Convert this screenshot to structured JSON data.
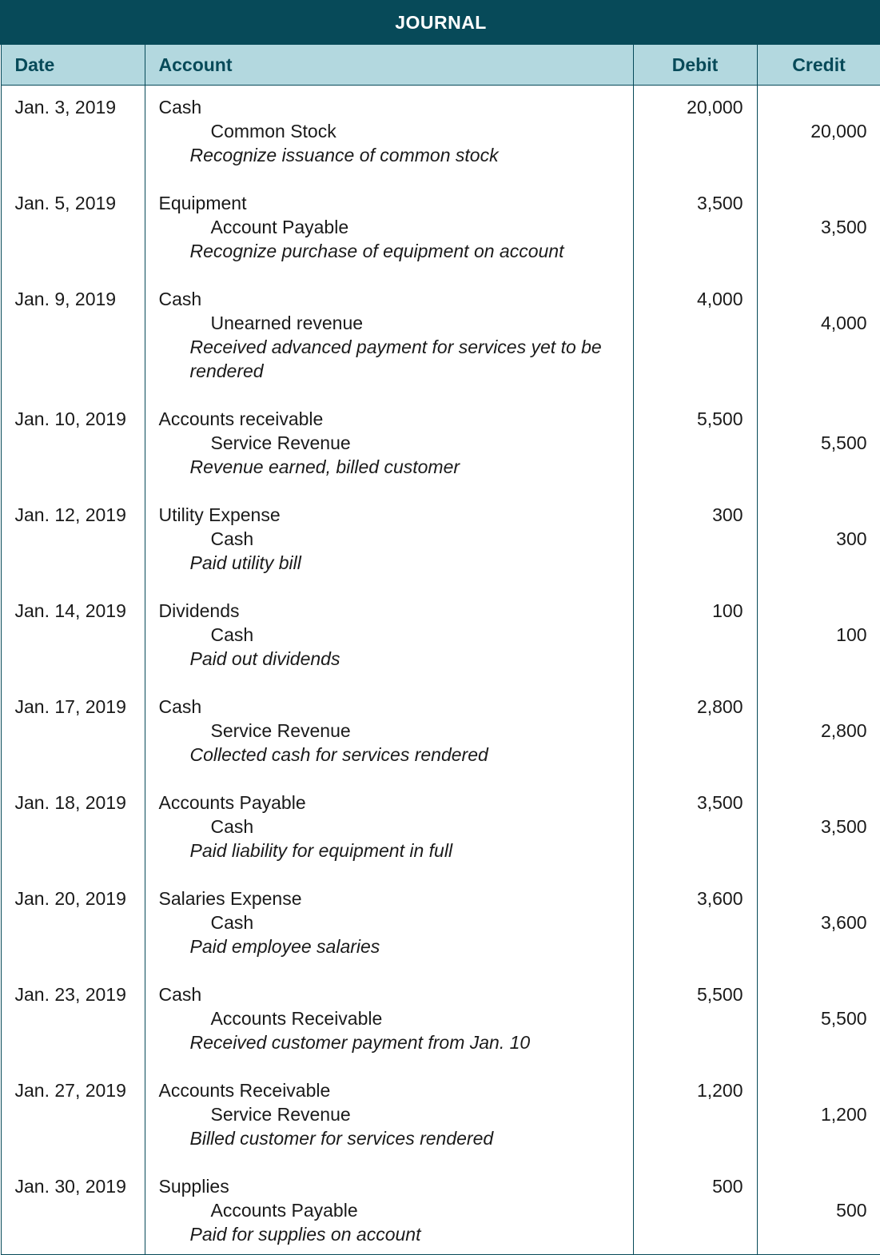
{
  "title": "JOURNAL",
  "headers": {
    "date": "Date",
    "account": "Account",
    "debit": "Debit",
    "credit": "Credit"
  },
  "colors": {
    "title_bg": "#074a59",
    "header_bg": "#b3d8df",
    "header_text": "#074a59"
  },
  "entries": [
    {
      "date": "Jan. 3, 2019",
      "debit_account": "Cash",
      "credit_account": "Common Stock",
      "memo": "Recognize issuance of common stock",
      "debit": "20,000",
      "credit": "20,000"
    },
    {
      "date": "Jan. 5, 2019",
      "debit_account": "Equipment",
      "credit_account": "Account Payable",
      "memo": "Recognize purchase of equipment on account",
      "debit": "3,500",
      "credit": "3,500"
    },
    {
      "date": "Jan. 9, 2019",
      "debit_account": "Cash",
      "credit_account": "Unearned revenue",
      "memo": "Received advanced payment for services yet to be rendered",
      "debit": "4,000",
      "credit": "4,000"
    },
    {
      "date": "Jan. 10, 2019",
      "debit_account": "Accounts receivable",
      "credit_account": "Service Revenue",
      "memo": "Revenue earned, billed customer",
      "debit": "5,500",
      "credit": "5,500"
    },
    {
      "date": "Jan. 12, 2019",
      "debit_account": "Utility Expense",
      "credit_account": "Cash",
      "memo": "Paid utility bill",
      "debit": "300",
      "credit": "300"
    },
    {
      "date": "Jan. 14, 2019",
      "debit_account": "Dividends",
      "credit_account": "Cash",
      "memo": "Paid out dividends",
      "debit": "100",
      "credit": "100"
    },
    {
      "date": "Jan. 17, 2019",
      "debit_account": "Cash",
      "credit_account": "Service Revenue",
      "memo": "Collected cash for services rendered",
      "debit": "2,800",
      "credit": "2,800"
    },
    {
      "date": "Jan. 18, 2019",
      "debit_account": "Accounts Payable",
      "credit_account": "Cash",
      "memo": "Paid liability for equipment in full",
      "debit": "3,500",
      "credit": "3,500"
    },
    {
      "date": "Jan. 20, 2019",
      "debit_account": "Salaries Expense",
      "credit_account": "Cash",
      "memo": "Paid employee salaries",
      "debit": "3,600",
      "credit": "3,600"
    },
    {
      "date": "Jan. 23, 2019",
      "debit_account": "Cash",
      "credit_account": "Accounts Receivable",
      "memo": "Received customer payment from Jan. 10",
      "debit": "5,500",
      "credit": "5,500"
    },
    {
      "date": "Jan. 27, 2019",
      "debit_account": "Accounts Receivable",
      "credit_account": "Service Revenue",
      "memo": "Billed customer for services rendered",
      "debit": "1,200",
      "credit": "1,200"
    },
    {
      "date": "Jan. 30, 2019",
      "debit_account": "Supplies",
      "credit_account": "Accounts Payable",
      "memo": "Paid for supplies on account",
      "debit": "500",
      "credit": "500"
    }
  ]
}
